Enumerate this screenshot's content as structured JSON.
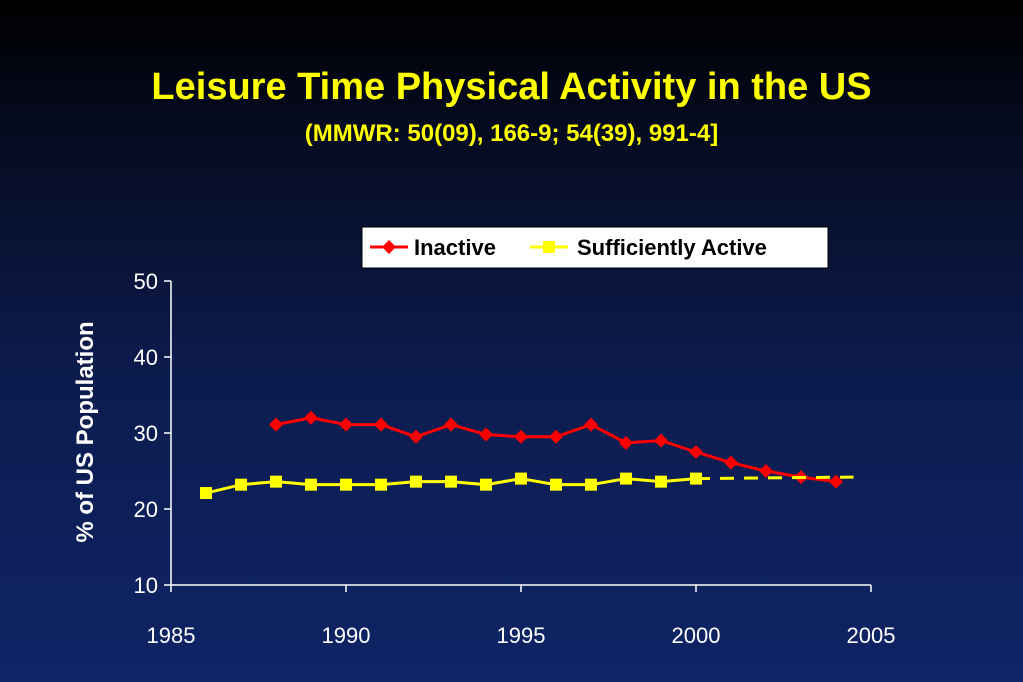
{
  "title": "Leisure Time Physical Activity in the US",
  "subtitle": "(MMWR: 50(09), 166-9; 54(39), 991-4]",
  "chart_data": {
    "type": "line",
    "ylabel": "% of US Population",
    "xlabel": "",
    "xlim": [
      1985,
      2005
    ],
    "ylim": [
      10,
      50
    ],
    "x_ticks": [
      1985,
      1990,
      1995,
      2000,
      2005
    ],
    "y_ticks": [
      10,
      20,
      30,
      40,
      50
    ],
    "legend_position": "top-right",
    "series": [
      {
        "name": "Inactive",
        "color": "#ff0000",
        "marker": "diamond",
        "x": [
          1988,
          1989,
          1990,
          1991,
          1992,
          1993,
          1994,
          1995,
          1996,
          1997,
          1998,
          1999,
          2000,
          2001,
          2002,
          2003,
          2004
        ],
        "values": [
          31.1,
          32.0,
          31.1,
          31.1,
          29.5,
          31.1,
          29.8,
          29.5,
          29.5,
          31.1,
          28.7,
          29.0,
          27.5,
          26.1,
          25.0,
          24.2,
          23.6
        ]
      },
      {
        "name": "Sufficiently Active",
        "color": "#ffff00",
        "marker": "square",
        "x": [
          1986,
          1987,
          1988,
          1989,
          1990,
          1991,
          1992,
          1993,
          1994,
          1995,
          1996,
          1997,
          1998,
          1999,
          2000
        ],
        "values": [
          22.1,
          23.2,
          23.6,
          23.2,
          23.2,
          23.2,
          23.6,
          23.6,
          23.2,
          24.0,
          23.2,
          23.2,
          24.0,
          23.6,
          24.0
        ],
        "projection": {
          "x": [
            2000,
            2004.5
          ],
          "values": [
            24.0,
            24.2
          ]
        }
      }
    ]
  }
}
